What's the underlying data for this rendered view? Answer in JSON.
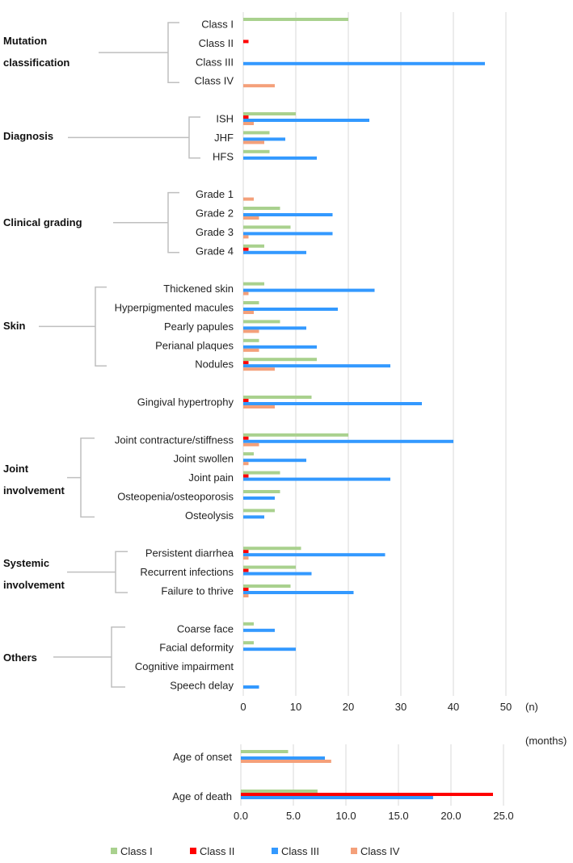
{
  "chart_data": [
    {
      "type": "bar",
      "orientation": "horizontal",
      "title": "",
      "xlabel": "(n)",
      "xlim": [
        0,
        50
      ],
      "xticks": [
        "0",
        "10",
        "20",
        "30",
        "40",
        "50"
      ],
      "grid": true,
      "series_names": [
        "Class I",
        "Class II",
        "Class III",
        "Class IV"
      ],
      "groups": [
        {
          "label": "Mutation classification",
          "label_lines": [
            "Mutation",
            "classification"
          ],
          "categories": [
            {
              "label": "Class I",
              "values": [
                20,
                0,
                0,
                0
              ]
            },
            {
              "label": "Class II",
              "values": [
                0,
                1,
                0,
                0
              ]
            },
            {
              "label": "Class III",
              "values": [
                0,
                0,
                46,
                0
              ]
            },
            {
              "label": "Class IV",
              "values": [
                0,
                0,
                0,
                6
              ]
            }
          ]
        },
        {
          "label": "Diagnosis",
          "label_lines": [
            "Diagnosis"
          ],
          "categories": [
            {
              "label": "ISH",
              "values": [
                10,
                1,
                24,
                2
              ]
            },
            {
              "label": "JHF",
              "values": [
                5,
                0,
                8,
                4
              ]
            },
            {
              "label": "HFS",
              "values": [
                5,
                0,
                14,
                0
              ]
            }
          ]
        },
        {
          "label": "Clinical grading",
          "label_lines": [
            "Clinical grading"
          ],
          "categories": [
            {
              "label": "Grade 1",
              "values": [
                0,
                0,
                0,
                2
              ]
            },
            {
              "label": "Grade 2",
              "values": [
                7,
                0,
                17,
                3
              ]
            },
            {
              "label": "Grade 3",
              "values": [
                9,
                0,
                17,
                1
              ]
            },
            {
              "label": "Grade 4",
              "values": [
                4,
                1,
                12,
                0
              ]
            }
          ]
        },
        {
          "label": "Skin",
          "label_lines": [
            "Skin"
          ],
          "categories": [
            {
              "label": "Thickened skin",
              "values": [
                4,
                0,
                25,
                1
              ]
            },
            {
              "label": "Hyperpigmented macules",
              "values": [
                3,
                0,
                18,
                2
              ]
            },
            {
              "label": "Pearly papules",
              "values": [
                7,
                0,
                12,
                3
              ]
            },
            {
              "label": "Perianal plaques",
              "values": [
                3,
                0,
                14,
                3
              ]
            },
            {
              "label": "Nodules",
              "values": [
                14,
                1,
                28,
                6
              ]
            }
          ]
        },
        {
          "label": "",
          "label_lines": [],
          "categories": [
            {
              "label": "Gingival hypertrophy",
              "values": [
                13,
                1,
                34,
                6
              ]
            }
          ]
        },
        {
          "label": "Joint involvement",
          "label_lines": [
            "Joint",
            "involvement"
          ],
          "categories": [
            {
              "label": "Joint contracture/stiffness",
              "values": [
                20,
                1,
                40,
                3
              ]
            },
            {
              "label": "Joint swollen",
              "values": [
                2,
                0,
                12,
                1
              ]
            },
            {
              "label": "Joint pain",
              "values": [
                7,
                1,
                28,
                0
              ]
            },
            {
              "label": "Osteopenia/osteoporosis",
              "values": [
                7,
                0,
                6,
                0
              ]
            },
            {
              "label": "Osteolysis",
              "values": [
                6,
                0,
                4,
                0
              ]
            }
          ]
        },
        {
          "label": "Systemic involvement",
          "label_lines": [
            "Systemic",
            "involvement"
          ],
          "categories": [
            {
              "label": "Persistent diarrhea",
              "values": [
                11,
                1,
                27,
                1
              ]
            },
            {
              "label": "Recurrent infections",
              "values": [
                10,
                1,
                13,
                0
              ]
            },
            {
              "label": "Failure to thrive",
              "values": [
                9,
                1,
                21,
                1
              ]
            }
          ]
        },
        {
          "label": "Others",
          "label_lines": [
            "Others"
          ],
          "categories": [
            {
              "label": "Coarse face",
              "values": [
                2,
                0,
                6,
                0
              ]
            },
            {
              "label": "Facial deformity",
              "values": [
                2,
                0,
                10,
                0
              ]
            },
            {
              "label": "Cognitive impairment",
              "values": [
                0,
                0,
                0,
                0
              ]
            },
            {
              "label": "Speech delay",
              "values": [
                0,
                0,
                3,
                0
              ]
            }
          ]
        }
      ]
    },
    {
      "type": "bar",
      "orientation": "horizontal",
      "xlabel": "(months)",
      "xlim": [
        0,
        25
      ],
      "xticks": [
        "0.0",
        "5.0",
        "10.0",
        "15.0",
        "20.0",
        "25.0"
      ],
      "grid": true,
      "series_names": [
        "Class I",
        "Class II",
        "Class III",
        "Class IV"
      ],
      "categories": [
        {
          "label": "Age of onset",
          "values": [
            4.5,
            null,
            8.0,
            8.6
          ]
        },
        {
          "label": "Age of death",
          "values": [
            7.3,
            24.0,
            18.3,
            null
          ]
        }
      ]
    }
  ],
  "legend": {
    "placement": "bottom",
    "items": [
      {
        "label": "Class I",
        "color": "#a9d18e"
      },
      {
        "label": "Class II",
        "color": "#ff0000"
      },
      {
        "label": "Class III",
        "color": "#3399ff"
      },
      {
        "label": "Class IV",
        "color": "#f4a07a"
      }
    ]
  }
}
